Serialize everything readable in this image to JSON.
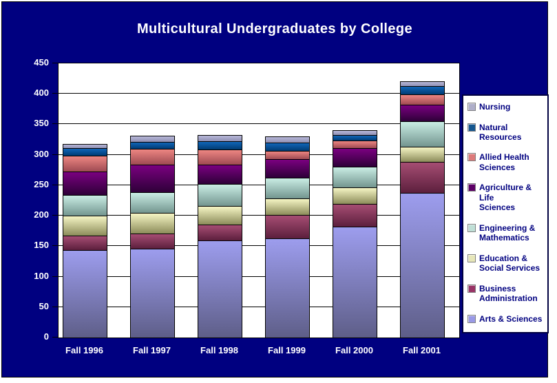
{
  "title": "Multicultural Undergraduates by College",
  "colors": {
    "slide_background": "#000080",
    "title_text": "#FFFFFF",
    "plot_background": "#FFFFFF",
    "grid_line": "#000000",
    "axis_text": "#FFFFFF",
    "legend_background": "#FFFFFF",
    "legend_text": "#000080",
    "legend_border": "#000040"
  },
  "chart_data": {
    "type": "bar",
    "stacked": true,
    "title": "Multicultural Undergraduates by College",
    "categories": [
      "Fall 1996",
      "Fall 1997",
      "Fall 1998",
      "Fall 1999",
      "Fall 2000",
      "Fall 2001"
    ],
    "series": [
      {
        "name": "Arts & Sciences",
        "values": [
          144,
          146,
          160,
          163,
          182,
          238
        ],
        "color": "#9D9DEE",
        "color_dark": "#5E5E88",
        "legend_color": "#9999E6"
      },
      {
        "name": "Business Administration",
        "values": [
          23,
          25,
          25,
          38,
          37,
          50
        ],
        "color": "#A64D73",
        "color_dark": "#5C1F3D",
        "legend_color": "#993366"
      },
      {
        "name": "Education & Social Services",
        "values": [
          33,
          34,
          31,
          28,
          27,
          25
        ],
        "color": "#F5F5C4",
        "color_dark": "#8C8C5A",
        "legend_color": "#E6E6B8"
      },
      {
        "name": "Engineering & Mathematics",
        "values": [
          34,
          34,
          36,
          33,
          34,
          42
        ],
        "color": "#C9EDE4",
        "color_dark": "#73958F",
        "legend_color": "#BFDFD6"
      },
      {
        "name": "Agriculture & Life Sciences",
        "values": [
          39,
          45,
          32,
          31,
          31,
          27
        ],
        "color": "#7A0080",
        "color_dark": "#2E0038",
        "legend_color": "#5C0066"
      },
      {
        "name": "Allied Health Sciences",
        "values": [
          26,
          26,
          25,
          13,
          12,
          17
        ],
        "color": "#ED8682",
        "color_dark": "#9E4A52",
        "legend_color": "#DD7A7A"
      },
      {
        "name": "Natural Resources",
        "values": [
          12,
          11,
          13,
          14,
          9,
          14
        ],
        "color": "#1166B8",
        "color_dark": "#003B73",
        "legend_color": "#15568F"
      },
      {
        "name": "Nursing",
        "values": [
          7,
          10,
          10,
          10,
          8,
          8
        ],
        "color": "#B8B8D9",
        "color_dark": "#8F8FB3",
        "legend_color": "#AEAEC9"
      }
    ],
    "totals": [
      318,
      331,
      332,
      330,
      340,
      421
    ],
    "y_axis": {
      "min": 0,
      "max": 450,
      "step": 50,
      "tick_labels": [
        "0",
        "50",
        "100",
        "150",
        "200",
        "250",
        "300",
        "350",
        "400",
        "450"
      ]
    },
    "x_axis_labels": [
      "Fall 1996",
      "Fall 1997",
      "Fall 1998",
      "Fall 1999",
      "Fall 2000",
      "Fall 2001"
    ],
    "grid": true,
    "legend": {
      "position": "right",
      "items": [
        {
          "name": "Nursing",
          "lines": [
            "Nursing"
          ]
        },
        {
          "name": "Natural Resources",
          "lines": [
            "Natural",
            "Resources"
          ]
        },
        {
          "name": "Allied Health Sciences",
          "lines": [
            "Allied Health",
            "Sciences"
          ]
        },
        {
          "name": "Agriculture & Life Sciences",
          "lines": [
            "Agriculture & Life",
            "Sciences"
          ]
        },
        {
          "name": "Engineering & Mathematics",
          "lines": [
            "Engineering &",
            "Mathematics"
          ]
        },
        {
          "name": "Education & Social Services",
          "lines": [
            "Education &",
            "Social Services"
          ]
        },
        {
          "name": "Business Administration",
          "lines": [
            "Business",
            "Administration"
          ]
        },
        {
          "name": "Arts & Sciences",
          "lines": [
            "Arts & Sciences"
          ]
        }
      ]
    }
  }
}
